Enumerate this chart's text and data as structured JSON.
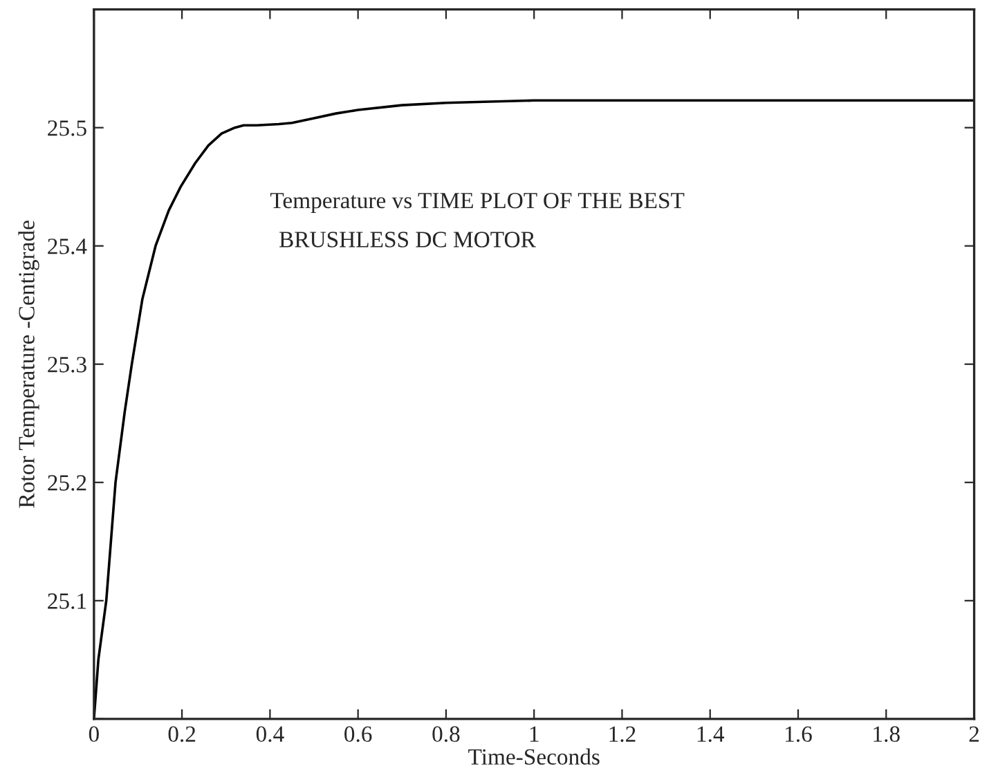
{
  "chart_data": {
    "type": "line",
    "xlabel": "Time-Seconds",
    "ylabel": "Rotor Temperature -Centigrade",
    "annotations": [
      "Temperature vs TIME PLOT OF THE BEST",
      "BRUSHLESS DC MOTOR"
    ],
    "x": [
      0,
      0.01,
      0.028,
      0.049,
      0.07,
      0.086,
      0.11,
      0.14,
      0.17,
      0.197,
      0.23,
      0.26,
      0.29,
      0.32,
      0.34,
      0.37,
      0.42,
      0.45,
      0.5,
      0.55,
      0.6,
      0.7,
      0.8,
      0.9,
      1.0,
      1.2,
      1.5,
      2.0
    ],
    "series": [
      {
        "color": "#000000",
        "values": [
          25.0,
          25.05,
          25.1,
          25.2,
          25.26,
          25.3,
          25.355,
          25.4,
          25.43,
          25.45,
          25.47,
          25.485,
          25.495,
          25.5,
          25.502,
          25.502,
          25.503,
          25.504,
          25.508,
          25.512,
          25.515,
          25.519,
          25.521,
          25.522,
          25.523,
          25.523,
          25.523,
          25.523
        ]
      }
    ],
    "xlim": [
      0,
      2
    ],
    "xticks": [
      0,
      0.2,
      0.4,
      0.6,
      0.8,
      1,
      1.2,
      1.4,
      1.6,
      1.8,
      2
    ],
    "ylim": [
      25.0,
      25.6
    ],
    "yticks": [
      {
        "value": 25.0,
        "label": null
      },
      25.1,
      25.2,
      25.3,
      25.4,
      25.5
    ],
    "grid": false,
    "marker": "none",
    "line_style": "solid"
  }
}
